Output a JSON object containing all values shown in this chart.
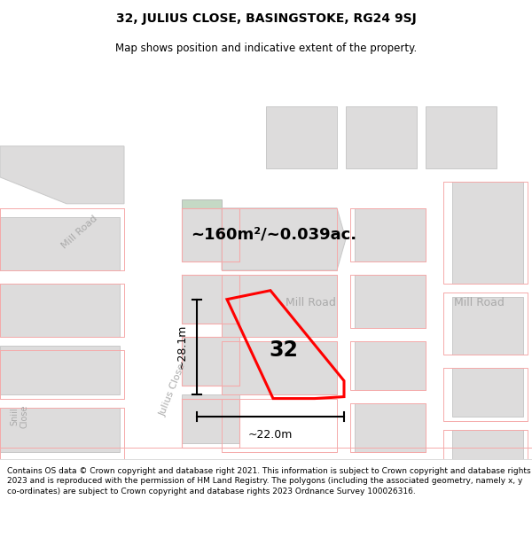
{
  "title": "32, JULIUS CLOSE, BASINGSTOKE, RG24 9SJ",
  "subtitle": "Map shows position and indicative extent of the property.",
  "footer": "Contains OS data © Crown copyright and database right 2021. This information is subject to Crown copyright and database rights 2023 and is reproduced with the permission of HM Land Registry. The polygons (including the associated geometry, namely x, y co-ordinates) are subject to Crown copyright and database rights 2023 Ordnance Survey 100026316.",
  "area_label": "~160m²/~0.039ac.",
  "number_label": "32",
  "width_label": "~22.0m",
  "height_label": "~28.1m",
  "map_bg": "#eeecec",
  "road_color": "#ffffff",
  "building_color": "#dddcdc",
  "building_outline": "#c8c8c8",
  "plot_color": "#ff0000",
  "road_label_color": "#aaaaaa",
  "green_area": "#c5d9c5",
  "pink_outline": "#f5aaaa",
  "title_fontsize": 10,
  "subtitle_fontsize": 8.5
}
